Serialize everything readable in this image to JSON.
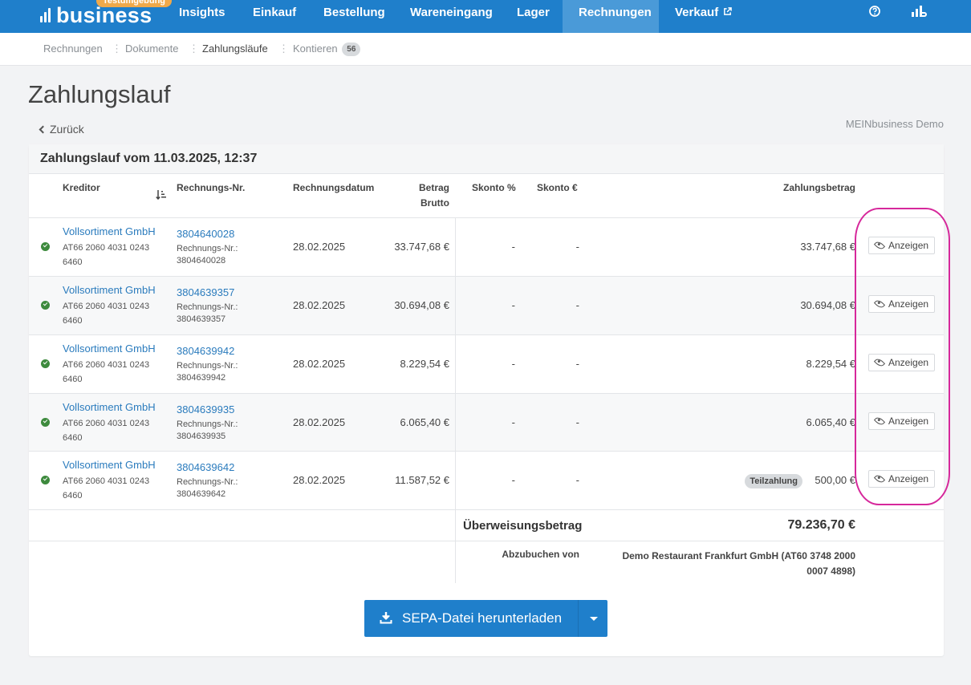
{
  "nav": {
    "logo_text": "business",
    "env_badge": "Testumgebung",
    "items": [
      {
        "label": "Insights"
      },
      {
        "label": "Einkauf"
      },
      {
        "label": "Bestellung"
      },
      {
        "label": "Wareneingang"
      },
      {
        "label": "Lager"
      },
      {
        "label": "Rechnungen"
      },
      {
        "label": "Verkauf"
      }
    ],
    "active": "Rechnungen",
    "external_icon": "external-link-icon",
    "help_icon": "help-circle-icon",
    "user_icon": "logo-bars-icon"
  },
  "subnav": {
    "items": [
      {
        "label": "Rechnungen"
      },
      {
        "label": "Dokumente"
      },
      {
        "label": "Zahlungsläufe"
      },
      {
        "label": "Kontieren",
        "count": "56"
      }
    ],
    "current": "Zahlungsläufe"
  },
  "page": {
    "title": "Zahlungslauf",
    "back_label": "Zurück",
    "company": "MEINbusiness Demo"
  },
  "card": {
    "title": "Zahlungslauf vom 11.03.2025, 12:37",
    "columns": {
      "kreditor": "Kreditor",
      "rnr": "Rechnungs-Nr.",
      "rdate": "Rechnungsdatum",
      "brutto_1": "Betrag",
      "brutto_2": "Brutto",
      "skonto_pct": "Skonto %",
      "skonto_eur": "Skonto €",
      "zahlung": "Zahlungsbetrag"
    },
    "rows": [
      {
        "kreditor": "Vollsortiment GmbH",
        "iban": "AT66 2060 4031 0243 6460",
        "rnr": "3804640028",
        "rnr_label": "Rechnungs-Nr.:",
        "rnr_sub": "3804640028",
        "date": "28.02.2025",
        "brutto": "33.747,68 €",
        "skonto_pct": "-",
        "skonto_eur": "-",
        "zahlung": "33.747,68 €",
        "teil": "",
        "action": "Anzeigen"
      },
      {
        "kreditor": "Vollsortiment GmbH",
        "iban": "AT66 2060 4031 0243 6460",
        "rnr": "3804639357",
        "rnr_label": "Rechnungs-Nr.:",
        "rnr_sub": "3804639357",
        "date": "28.02.2025",
        "brutto": "30.694,08 €",
        "skonto_pct": "-",
        "skonto_eur": "-",
        "zahlung": "30.694,08 €",
        "teil": "",
        "action": "Anzeigen"
      },
      {
        "kreditor": "Vollsortiment GmbH",
        "iban": "AT66 2060 4031 0243 6460",
        "rnr": "3804639942",
        "rnr_label": "Rechnungs-Nr.:",
        "rnr_sub": "3804639942",
        "date": "28.02.2025",
        "brutto": "8.229,54 €",
        "skonto_pct": "-",
        "skonto_eur": "-",
        "zahlung": "8.229,54 €",
        "teil": "",
        "action": "Anzeigen"
      },
      {
        "kreditor": "Vollsortiment GmbH",
        "iban": "AT66 2060 4031 0243 6460",
        "rnr": "3804639935",
        "rnr_label": "Rechnungs-Nr.:",
        "rnr_sub": "3804639935",
        "date": "28.02.2025",
        "brutto": "6.065,40 €",
        "skonto_pct": "-",
        "skonto_eur": "-",
        "zahlung": "6.065,40 €",
        "teil": "",
        "action": "Anzeigen"
      },
      {
        "kreditor": "Vollsortiment GmbH",
        "iban": "AT66 2060 4031 0243 6460",
        "rnr": "3804639642",
        "rnr_label": "Rechnungs-Nr.:",
        "rnr_sub": "3804639642",
        "date": "28.02.2025",
        "brutto": "11.587,52 €",
        "skonto_pct": "-",
        "skonto_eur": "-",
        "zahlung": "500,00 €",
        "teil": "Teilzahlung",
        "action": "Anzeigen"
      }
    ],
    "sum_label": "Überweisungsbetrag",
    "sum_value": "79.236,70 €",
    "account_label": "Abzubuchen von",
    "account_value": "Demo Restaurant Frankfurt GmbH (AT60 3748 2000 0007 4898)",
    "download_label": "SEPA-Datei herunterladen"
  },
  "colors": {
    "brand": "#1f7fcb",
    "highlight": "#d6289b",
    "check": "#3d8a3d",
    "link": "#2a7bbd"
  }
}
